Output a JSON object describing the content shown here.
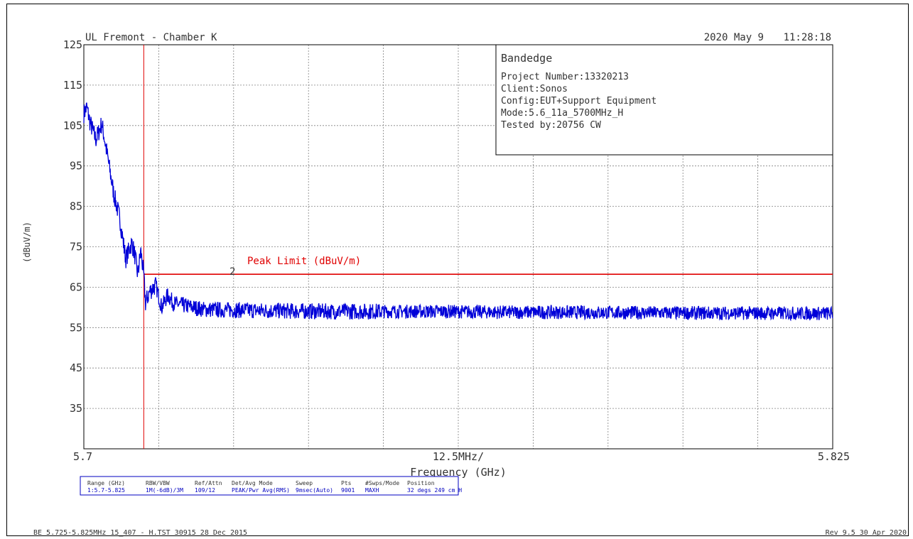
{
  "header": {
    "site": "UL Fremont - Chamber K",
    "date": "2020 May 9",
    "time": "11:28:18"
  },
  "info_box": {
    "title": "Bandedge",
    "lines": [
      "Project Number:13320213",
      "Client:Sonos",
      "Config:EUT+Support Equipment",
      "Mode:5.6_11a_5700MHz_H",
      "Tested by:20756 CW"
    ]
  },
  "settings_table": {
    "headers": [
      "Range (GHz)",
      "RBW/VBW",
      "Ref/Attn",
      "Det/Avg Mode",
      "Sweep",
      "Pts",
      "#Swps/Mode",
      "Position"
    ],
    "values": [
      "1:5.7-5.825",
      "1M(-6dB)/3M",
      "109/12",
      "PEAK/Pwr Avg(RMS)",
      "9msec(Auto)",
      "9001",
      "MAXH",
      "32 degs 249 cm H"
    ]
  },
  "footer": {
    "left": "BE 5.725-5.825MHz 15_407 - H.TST 30915 28 Dec 2015",
    "right": "Rev 9.5 30 Apr 2020"
  },
  "colors": {
    "trace": "#0000d8",
    "limit": "#e00000",
    "grid": "#808080",
    "text": "#333333",
    "table_text": "#0000c0"
  },
  "chart_data": {
    "type": "line",
    "ylabel": "(dBuV/m)",
    "xlabel": "Frequency (GHz)",
    "ylim": [
      25,
      125
    ],
    "yticks": [
      125,
      115,
      105,
      95,
      85,
      75,
      65,
      55,
      45,
      35
    ],
    "ytick_labels": [
      "125",
      "115",
      "105",
      "95",
      "85",
      "75",
      "65",
      "55",
      "45",
      "35"
    ],
    "xlim": [
      5.7,
      5.825
    ],
    "xtick_labels": {
      "left": "5.7",
      "center": "12.5MHz/",
      "right": "5.825"
    },
    "grid": true,
    "marker": {
      "label": "2",
      "x": 5.71,
      "y": 67
    },
    "limit_line": {
      "name": "Peak Limit (dBuV/m)",
      "y": 68.2,
      "x_start": 5.71,
      "x_end": 5.825
    },
    "series": [
      {
        "x": [
          5.7,
          5.7005,
          5.701,
          5.702,
          5.703,
          5.704,
          5.705,
          5.706,
          5.707,
          5.708,
          5.7085,
          5.709,
          5.7095,
          5.71,
          5.7103,
          5.711,
          5.712,
          5.713,
          5.714,
          5.715,
          5.72,
          5.73,
          5.74,
          5.75,
          5.76,
          5.77,
          5.78,
          5.79,
          5.8,
          5.81,
          5.825
        ],
        "y": [
          108,
          109.5,
          106,
          101.5,
          105.5,
          97,
          88,
          82,
          72,
          76,
          73,
          68,
          74,
          68,
          61,
          64,
          65.5,
          60,
          63,
          61,
          59.5,
          59.2,
          59,
          59,
          59,
          58.8,
          58.8,
          58.7,
          58.6,
          58.6,
          58.5
        ]
      }
    ]
  }
}
